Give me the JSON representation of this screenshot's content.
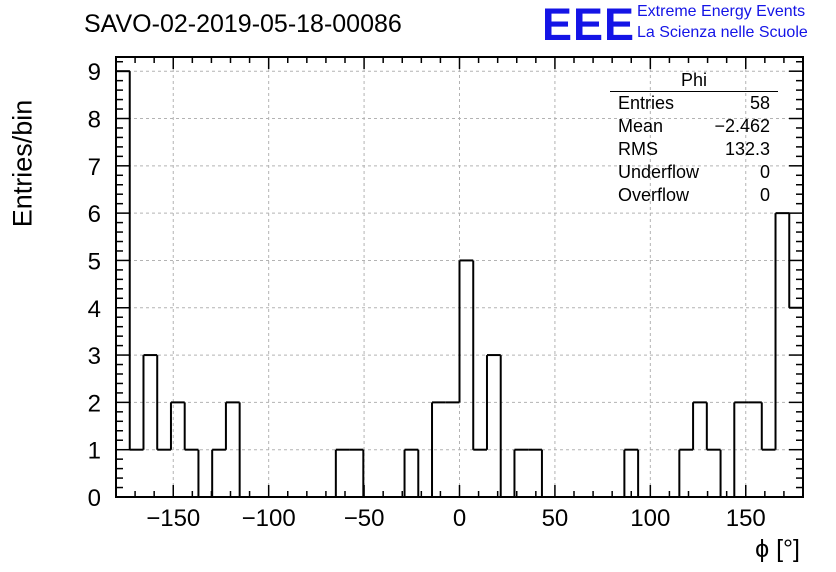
{
  "title": "SAVO-02-2019-05-18-00086",
  "logo": {
    "mark": "EEE",
    "line1": "Extreme Energy Events",
    "line2": "La Scienza nelle Scuole",
    "color": "#1414e6"
  },
  "stats_box": {
    "title": "Phi",
    "rows": [
      {
        "label": "Entries",
        "value": "58"
      },
      {
        "label": "Mean",
        "value": "−2.462"
      },
      {
        "label": "RMS",
        "value": "132.3"
      },
      {
        "label": "Underflow",
        "value": "0"
      },
      {
        "label": "Overflow",
        "value": "0"
      }
    ]
  },
  "chart_data": {
    "type": "bar",
    "title": "SAVO-02-2019-05-18-00086",
    "xlabel": "ϕ [°]",
    "ylabel": "Entries/bin",
    "xlim": [
      -180,
      180
    ],
    "ylim": [
      0,
      9.3
    ],
    "bin_width": 7.2,
    "x_ticks": [
      -150,
      -100,
      -50,
      0,
      50,
      100,
      150
    ],
    "x_tick_labels": [
      "−150",
      "−100",
      "−50",
      "0",
      "50",
      "100",
      "150"
    ],
    "y_ticks": [
      0,
      1,
      2,
      3,
      4,
      5,
      6,
      7,
      8,
      9
    ],
    "y_tick_labels": [
      "0",
      "1",
      "2",
      "3",
      "4",
      "5",
      "6",
      "7",
      "8",
      "9"
    ],
    "grid": true,
    "bins": [
      {
        "x": -176.4,
        "value": 9
      },
      {
        "x": -169.2,
        "value": 1
      },
      {
        "x": -162.0,
        "value": 3
      },
      {
        "x": -154.8,
        "value": 1
      },
      {
        "x": -147.6,
        "value": 2
      },
      {
        "x": -140.4,
        "value": 1
      },
      {
        "x": -133.2,
        "value": 0
      },
      {
        "x": -126.0,
        "value": 1
      },
      {
        "x": -118.8,
        "value": 2
      },
      {
        "x": -111.6,
        "value": 0
      },
      {
        "x": -104.4,
        "value": 0
      },
      {
        "x": -97.2,
        "value": 0
      },
      {
        "x": -90.0,
        "value": 0
      },
      {
        "x": -82.8,
        "value": 0
      },
      {
        "x": -75.6,
        "value": 0
      },
      {
        "x": -68.4,
        "value": 0
      },
      {
        "x": -61.2,
        "value": 1
      },
      {
        "x": -54.0,
        "value": 1
      },
      {
        "x": -46.8,
        "value": 0
      },
      {
        "x": -39.6,
        "value": 0
      },
      {
        "x": -32.4,
        "value": 0
      },
      {
        "x": -25.2,
        "value": 1
      },
      {
        "x": -18.0,
        "value": 0
      },
      {
        "x": -10.8,
        "value": 2
      },
      {
        "x": -3.6,
        "value": 2
      },
      {
        "x": 3.6,
        "value": 5
      },
      {
        "x": 10.8,
        "value": 1
      },
      {
        "x": 18.0,
        "value": 3
      },
      {
        "x": 25.2,
        "value": 0
      },
      {
        "x": 32.4,
        "value": 1
      },
      {
        "x": 39.6,
        "value": 1
      },
      {
        "x": 46.8,
        "value": 0
      },
      {
        "x": 54.0,
        "value": 0
      },
      {
        "x": 61.2,
        "value": 0
      },
      {
        "x": 68.4,
        "value": 0
      },
      {
        "x": 75.6,
        "value": 0
      },
      {
        "x": 82.8,
        "value": 0
      },
      {
        "x": 90.0,
        "value": 1
      },
      {
        "x": 97.2,
        "value": 0
      },
      {
        "x": 104.4,
        "value": 0
      },
      {
        "x": 111.6,
        "value": 0
      },
      {
        "x": 118.8,
        "value": 1
      },
      {
        "x": 126.0,
        "value": 2
      },
      {
        "x": 133.2,
        "value": 1
      },
      {
        "x": 140.4,
        "value": 0
      },
      {
        "x": 147.6,
        "value": 2
      },
      {
        "x": 154.8,
        "value": 2
      },
      {
        "x": 162.0,
        "value": 1
      },
      {
        "x": 169.2,
        "value": 6
      },
      {
        "x": 176.4,
        "value": 4
      }
    ]
  }
}
